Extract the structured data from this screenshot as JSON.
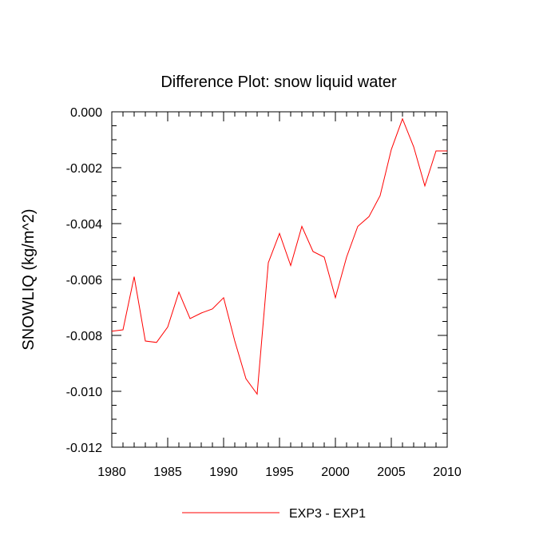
{
  "chart_data": {
    "type": "line",
    "title": "Difference Plot: snow liquid water",
    "xlabel": "",
    "ylabel": "SNOWLIQ  (kg/m^2)",
    "xlim": [
      1980,
      2010
    ],
    "ylim": [
      -0.012,
      0.0
    ],
    "x_ticks": [
      1980,
      1985,
      1990,
      1995,
      2000,
      2005,
      2010
    ],
    "x_tick_labels": [
      "1980",
      "1985",
      "1990",
      "1995",
      "2000",
      "2005",
      "2010"
    ],
    "y_ticks": [
      0.0,
      -0.002,
      -0.004,
      -0.006,
      -0.008,
      -0.01,
      -0.012
    ],
    "y_tick_labels": [
      "0.000",
      "-0.002",
      "-0.004",
      "-0.006",
      "-0.008",
      "-0.010",
      "-0.012"
    ],
    "grid": false,
    "legend_position": "bottom-center",
    "series": [
      {
        "name": "EXP3 - EXP1",
        "color": "#ff0000",
        "x": [
          1980,
          1981,
          1982,
          1983,
          1984,
          1985,
          1986,
          1987,
          1988,
          1989,
          1990,
          1991,
          1992,
          1993,
          1994,
          1995,
          1996,
          1997,
          1998,
          1999,
          2000,
          2001,
          2002,
          2003,
          2004,
          2005,
          2006,
          2007,
          2008,
          2009,
          2010
        ],
        "values": [
          -0.00785,
          -0.0078,
          -0.0059,
          -0.0082,
          -0.00825,
          -0.0077,
          -0.00645,
          -0.0074,
          -0.0072,
          -0.00705,
          -0.00665,
          -0.0082,
          -0.00955,
          -0.0101,
          -0.0054,
          -0.00435,
          -0.0055,
          -0.0041,
          -0.005,
          -0.0052,
          -0.00665,
          -0.0052,
          -0.0041,
          -0.00375,
          -0.003,
          -0.00135,
          -0.00025,
          -0.00125,
          -0.00265,
          -0.0014,
          -0.0014
        ]
      }
    ]
  }
}
